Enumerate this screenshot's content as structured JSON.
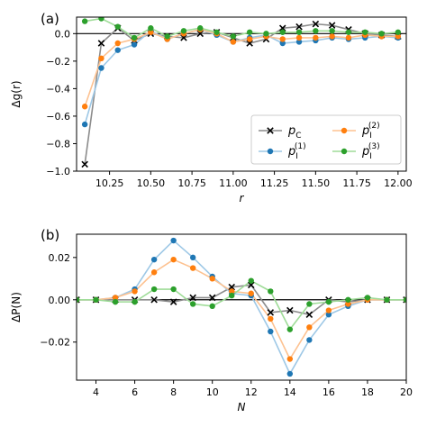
{
  "chart_data": [
    {
      "type": "line",
      "panel_label": "(a)",
      "xlabel": "r",
      "ylabel": "Δg(r)",
      "xlim": [
        10.05,
        12.05
      ],
      "ylim": [
        -1.0,
        0.12
      ],
      "xticks": [
        10.25,
        10.5,
        10.75,
        11.0,
        11.25,
        11.5,
        11.75,
        12.0
      ],
      "xtick_labels": [
        "10.25",
        "10.50",
        "10.75",
        "11.00",
        "11.25",
        "11.50",
        "11.75",
        "12.00"
      ],
      "yticks": [
        -1.0,
        -0.8,
        -0.6,
        -0.4,
        -0.2,
        0.0
      ],
      "ytick_labels": [
        "−1.0",
        "−0.8",
        "−0.6",
        "−0.4",
        "−0.2",
        "0.0"
      ],
      "zero_line": true,
      "legend": {
        "placement": "center-right",
        "columns": 2
      },
      "x": [
        10.1,
        10.2,
        10.3,
        10.4,
        10.5,
        10.6,
        10.7,
        10.8,
        10.9,
        11.0,
        11.1,
        11.2,
        11.3,
        11.4,
        11.5,
        11.6,
        11.7,
        11.8,
        11.9,
        12.0
      ],
      "series": [
        {
          "name": "p_C",
          "sub": "C",
          "sup": "",
          "color": "#000000",
          "line_color": "#8c8c8c",
          "marker": "x",
          "values": [
            -0.95,
            -0.07,
            0.04,
            -0.05,
            0.0,
            -0.02,
            -0.03,
            0.0,
            0.01,
            -0.03,
            -0.07,
            -0.04,
            0.04,
            0.05,
            0.07,
            0.06,
            0.03,
            0.0,
            -0.01,
            -0.02
          ]
        },
        {
          "name": "p_I^(1)",
          "sub": "I",
          "sup": "(1)",
          "color": "#1f77b4",
          "line_color": "#9ec8e6",
          "marker": "o",
          "values": [
            -0.66,
            -0.25,
            -0.12,
            -0.08,
            0.02,
            -0.04,
            0.0,
            0.03,
            -0.01,
            -0.06,
            -0.03,
            -0.01,
            -0.07,
            -0.06,
            -0.05,
            -0.03,
            -0.04,
            -0.03,
            -0.02,
            -0.03
          ]
        },
        {
          "name": "p_I^(2)",
          "sub": "I",
          "sup": "(2)",
          "color": "#ff7f0e",
          "line_color": "#fdc291",
          "marker": "o",
          "values": [
            -0.53,
            -0.18,
            -0.07,
            -0.04,
            0.01,
            -0.04,
            0.0,
            0.03,
            0.0,
            -0.06,
            -0.04,
            -0.02,
            -0.04,
            -0.03,
            -0.03,
            -0.02,
            -0.03,
            -0.01,
            -0.02,
            -0.02
          ]
        },
        {
          "name": "p_I^(3)",
          "sub": "I",
          "sup": "(3)",
          "color": "#2ca02c",
          "line_color": "#9fdc98",
          "marker": "o",
          "values": [
            0.09,
            0.11,
            0.05,
            -0.03,
            0.04,
            -0.02,
            0.02,
            0.04,
            0.01,
            -0.02,
            0.01,
            0.0,
            0.01,
            0.01,
            0.02,
            0.02,
            0.01,
            0.01,
            0.0,
            0.01
          ]
        }
      ]
    },
    {
      "type": "line",
      "panel_label": "(b)",
      "xlabel": "N",
      "ylabel": "ΔP(N)",
      "xlim": [
        3,
        20
      ],
      "ylim": [
        -0.038,
        0.031
      ],
      "xticks": [
        4,
        6,
        8,
        10,
        12,
        14,
        16,
        18,
        20
      ],
      "xtick_labels": [
        "4",
        "6",
        "8",
        "10",
        "12",
        "14",
        "16",
        "18",
        "20"
      ],
      "yticks": [
        -0.02,
        0.0,
        0.02
      ],
      "ytick_labels": [
        "−0.02",
        "0.00",
        "0.02"
      ],
      "zero_line": true,
      "x": [
        3,
        4,
        5,
        6,
        7,
        8,
        9,
        10,
        11,
        12,
        13,
        14,
        15,
        16,
        17,
        18,
        19,
        20
      ],
      "series": [
        {
          "name": "p_C",
          "color": "#000000",
          "line_color": "#8c8c8c",
          "marker": "x",
          "values": [
            0.0,
            0.0,
            0.0,
            0.0,
            0.0,
            -0.001,
            0.001,
            0.001,
            0.006,
            0.007,
            -0.006,
            -0.005,
            -0.007,
            0.0,
            -0.001,
            0.0,
            0.0,
            0.0
          ]
        },
        {
          "name": "p_I^(1)",
          "color": "#1f77b4",
          "line_color": "#9ec8e6",
          "marker": "o",
          "values": [
            0.0,
            0.0,
            0.001,
            0.005,
            0.019,
            0.028,
            0.02,
            0.011,
            0.003,
            0.002,
            -0.015,
            -0.035,
            -0.019,
            -0.007,
            -0.003,
            0.0,
            0.0,
            0.0
          ]
        },
        {
          "name": "p_I^(2)",
          "color": "#ff7f0e",
          "line_color": "#fdc291",
          "marker": "o",
          "values": [
            0.0,
            0.0,
            0.001,
            0.004,
            0.013,
            0.019,
            0.015,
            0.01,
            0.004,
            0.003,
            -0.009,
            -0.028,
            -0.013,
            -0.005,
            -0.002,
            0.0,
            0.0,
            0.0
          ]
        },
        {
          "name": "p_I^(3)",
          "color": "#2ca02c",
          "line_color": "#9fdc98",
          "marker": "o",
          "values": [
            0.0,
            0.0,
            -0.001,
            -0.001,
            0.005,
            0.005,
            -0.002,
            -0.003,
            0.002,
            0.009,
            0.004,
            -0.014,
            -0.002,
            -0.001,
            0.0,
            0.001,
            0.0,
            0.0
          ]
        }
      ]
    }
  ]
}
